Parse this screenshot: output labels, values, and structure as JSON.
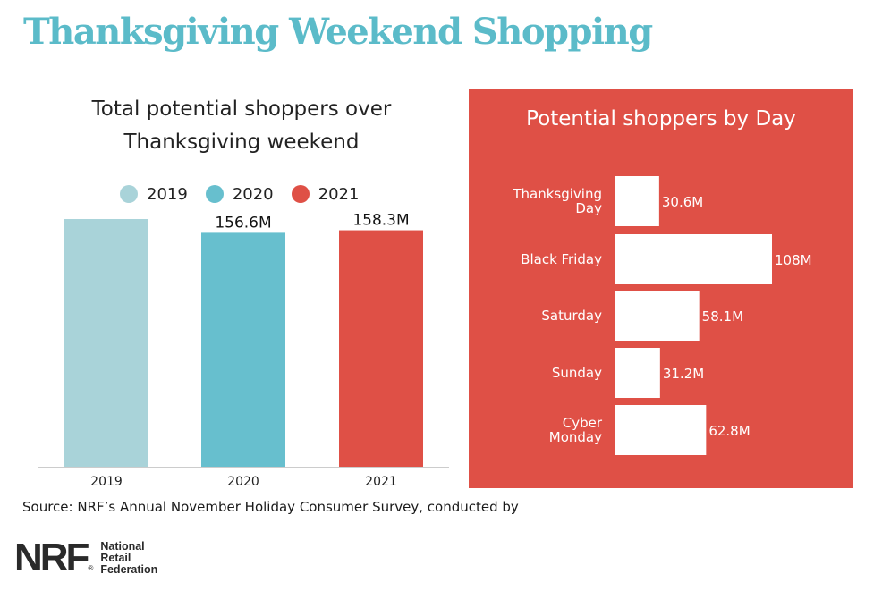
{
  "title": "Thanksgiving Weekend Shopping",
  "source": "Source: NRF’s Annual November Holiday Consumer Survey, conducted by",
  "logo": {
    "mark": "NRF",
    "registered": "®",
    "lines": [
      "National",
      "Retail",
      "Federation"
    ]
  },
  "colors": {
    "title": "#5bbbc9",
    "bar_2019": "#a9d3d9",
    "bar_2020": "#67bfce",
    "bar_2021": "#df5046",
    "panel_bg": "#df5046",
    "panel_bar": "#ffffff",
    "panel_text": "#ffffff",
    "axis": "#cccccc"
  },
  "chart_data": [
    {
      "type": "bar",
      "title_lines": [
        "Total potential shoppers over",
        "Thanksgiving weekend"
      ],
      "legend": [
        "2019",
        "2020",
        "2021"
      ],
      "legend_placement": "top-center",
      "categories": [
        "2019",
        "2020",
        "2021"
      ],
      "values": [
        165.8,
        156.6,
        158.3
      ],
      "data_labels": [
        "",
        "156.6M",
        "158.3M"
      ],
      "ylim": [
        0,
        170
      ],
      "grid": false
    },
    {
      "type": "bar",
      "orientation": "horizontal",
      "title": "Potential shoppers by Day",
      "categories": [
        "Thanksgiving Day",
        "Black Friday",
        "Saturday",
        "Sunday",
        "Cyber Monday"
      ],
      "category_lines": [
        [
          "Thanksgiving",
          "Day"
        ],
        [
          "Black Friday"
        ],
        [
          "Saturday"
        ],
        [
          "Sunday"
        ],
        [
          "Cyber",
          "Monday"
        ]
      ],
      "values": [
        30.6,
        108,
        58.1,
        31.2,
        62.8
      ],
      "data_labels": [
        "30.6M",
        "108M",
        "58.1M",
        "31.2M",
        "62.8M"
      ],
      "xlim": [
        0,
        108
      ],
      "grid": false
    }
  ]
}
